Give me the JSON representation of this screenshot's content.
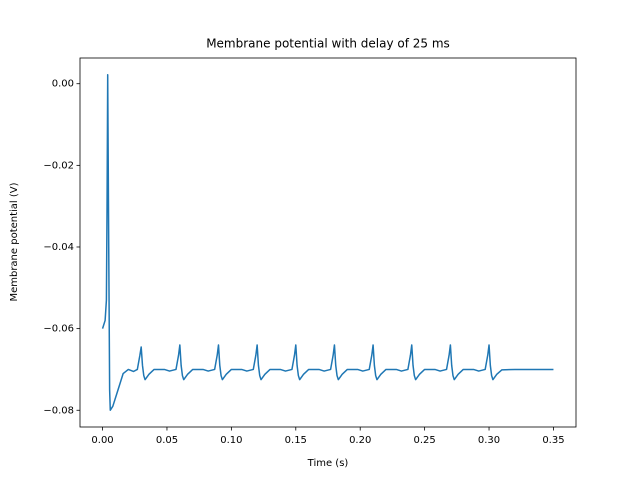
{
  "chart_data": {
    "type": "line",
    "title": "Membrane potential with delay of 25 ms",
    "xlabel": "Time (s)",
    "ylabel": "Membrane potential (V)",
    "xlim": [
      -0.0175,
      0.3675
    ],
    "ylim": [
      -0.0841,
      0.0063
    ],
    "xticks": [
      {
        "value": 0,
        "label": "0.00"
      },
      {
        "value": 0.05,
        "label": "0.05"
      },
      {
        "value": 0.1,
        "label": "0.10"
      },
      {
        "value": 0.15,
        "label": "0.15"
      },
      {
        "value": 0.2,
        "label": "0.20"
      },
      {
        "value": 0.25,
        "label": "0.25"
      },
      {
        "value": 0.3,
        "label": "0.30"
      },
      {
        "value": 0.35,
        "label": "0.35"
      }
    ],
    "yticks": [
      {
        "value": -0.08,
        "label": "−0.08"
      },
      {
        "value": -0.06,
        "label": "−0.06"
      },
      {
        "value": -0.04,
        "label": "−0.04"
      },
      {
        "value": -0.02,
        "label": "−0.02"
      },
      {
        "value": 0,
        "label": "0.00"
      }
    ],
    "series": [
      {
        "color": "#1f77b4",
        "x": [
          0,
          0.002,
          0.003,
          0.0035,
          0.004,
          0.0048,
          0.0055,
          0.006,
          0.008,
          0.012,
          0.016,
          0.02,
          0.024,
          0.027,
          0.029,
          0.03,
          0.031,
          0.032,
          0.033,
          0.036,
          0.04,
          0.048,
          0.052,
          0.057,
          0.059,
          0.06,
          0.061,
          0.062,
          0.063,
          0.066,
          0.07,
          0.078,
          0.082,
          0.087,
          0.089,
          0.09,
          0.091,
          0.092,
          0.093,
          0.096,
          0.1,
          0.108,
          0.112,
          0.117,
          0.119,
          0.12,
          0.121,
          0.122,
          0.123,
          0.126,
          0.13,
          0.138,
          0.142,
          0.147,
          0.149,
          0.15,
          0.151,
          0.152,
          0.153,
          0.156,
          0.16,
          0.168,
          0.172,
          0.177,
          0.179,
          0.18,
          0.181,
          0.182,
          0.183,
          0.186,
          0.19,
          0.198,
          0.202,
          0.207,
          0.209,
          0.21,
          0.211,
          0.212,
          0.213,
          0.216,
          0.22,
          0.228,
          0.232,
          0.237,
          0.239,
          0.24,
          0.241,
          0.242,
          0.243,
          0.246,
          0.25,
          0.258,
          0.262,
          0.267,
          0.269,
          0.27,
          0.271,
          0.272,
          0.273,
          0.276,
          0.28,
          0.288,
          0.292,
          0.297,
          0.299,
          0.3,
          0.301,
          0.302,
          0.303,
          0.306,
          0.31,
          0.32,
          0.35
        ],
        "values": [
          -0.06,
          -0.058,
          -0.053,
          -0.03,
          0.0022,
          -0.04,
          -0.075,
          -0.08,
          -0.079,
          -0.075,
          -0.071,
          -0.07,
          -0.0705,
          -0.07,
          -0.0665,
          -0.0645,
          -0.069,
          -0.0715,
          -0.0725,
          -0.0712,
          -0.07,
          -0.07,
          -0.0704,
          -0.07,
          -0.0665,
          -0.064,
          -0.069,
          -0.0715,
          -0.0725,
          -0.0712,
          -0.07,
          -0.07,
          -0.0704,
          -0.07,
          -0.0665,
          -0.064,
          -0.069,
          -0.0715,
          -0.0725,
          -0.0712,
          -0.07,
          -0.07,
          -0.0704,
          -0.07,
          -0.0665,
          -0.064,
          -0.069,
          -0.0715,
          -0.0725,
          -0.0712,
          -0.07,
          -0.07,
          -0.0704,
          -0.07,
          -0.0665,
          -0.064,
          -0.069,
          -0.0715,
          -0.0725,
          -0.0712,
          -0.07,
          -0.07,
          -0.0704,
          -0.07,
          -0.0665,
          -0.064,
          -0.069,
          -0.0715,
          -0.0725,
          -0.0712,
          -0.07,
          -0.07,
          -0.0704,
          -0.07,
          -0.0665,
          -0.064,
          -0.069,
          -0.0715,
          -0.0725,
          -0.0712,
          -0.07,
          -0.07,
          -0.0704,
          -0.07,
          -0.0665,
          -0.064,
          -0.069,
          -0.0715,
          -0.0725,
          -0.0712,
          -0.07,
          -0.07,
          -0.0704,
          -0.07,
          -0.0665,
          -0.064,
          -0.069,
          -0.0715,
          -0.0725,
          -0.0712,
          -0.07,
          -0.07,
          -0.0704,
          -0.07,
          -0.0665,
          -0.064,
          -0.069,
          -0.0715,
          -0.0725,
          -0.0712,
          -0.0701,
          -0.07,
          -0.07
        ]
      }
    ]
  }
}
